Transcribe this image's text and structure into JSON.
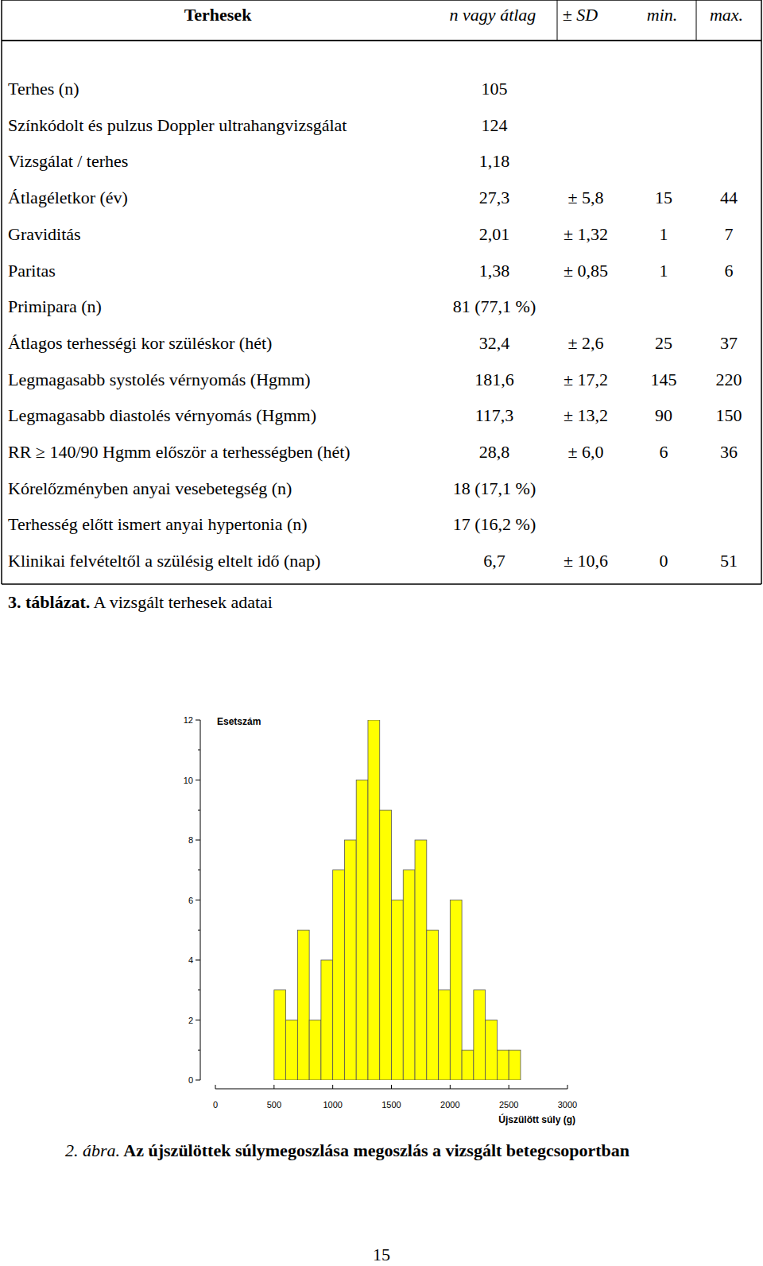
{
  "table": {
    "header": [
      "Terhesek",
      "n vagy átlag",
      "± SD",
      "min.",
      "max."
    ],
    "rows": [
      [
        "Terhes (n)",
        "105",
        null,
        null,
        null
      ],
      [
        "Színkódolt és pulzus Doppler ultrahangvizsgálat",
        "124",
        null,
        null,
        null
      ],
      [
        "Vizsgálat / terhes",
        "1,18",
        null,
        null,
        null
      ],
      [
        "Átlagéletkor (év)",
        "27,3",
        "± 5,8",
        "15",
        "44"
      ],
      [
        "Graviditás",
        "2,01",
        "± 1,32",
        "1",
        "7"
      ],
      [
        "Paritas",
        "1,38",
        "± 0,85",
        "1",
        "6"
      ],
      [
        "Primipara (n)",
        "81 (77,1 %)",
        null,
        null,
        null
      ],
      [
        "Átlagos terhességi kor szüléskor (hét)",
        "32,4",
        "± 2,6",
        "25",
        "37"
      ],
      [
        "Legmagasabb systolés vérnyomás (Hgmm)",
        "181,6",
        "± 17,2",
        "145",
        "220"
      ],
      [
        "Legmagasabb diastolés vérnyomás (Hgmm)",
        "117,3",
        "± 13,2",
        "90",
        "150"
      ],
      [
        "RR ≥ 140/90 Hgmm először a terhességben (hét)",
        "28,8",
        "± 6,0",
        "6",
        "36"
      ],
      [
        "Kórelőzményben anyai vesebetegség (n)",
        "18 (17,1 %)",
        null,
        null,
        null
      ],
      [
        "Terhesség előtt ismert anyai hypertonia (n)",
        "17 (16,2 %)",
        null,
        null,
        null
      ],
      [
        "Klinikai felvételtől a szülésig eltelt idő (nap)",
        "6,7",
        "± 10,6",
        "0",
        "51"
      ]
    ]
  },
  "table_caption": {
    "number": "3. táblázat.",
    "text": "A vizsgált terhesek adatai"
  },
  "chart_data": {
    "type": "histogram",
    "y_label": "Esetszám",
    "x_label": "Újszülött súly (g)",
    "bins": [
      500,
      600,
      700,
      800,
      900,
      1000,
      1100,
      1200,
      1300,
      1400,
      1500,
      1600,
      1700,
      1800,
      1900,
      2000,
      2100,
      2200,
      2300,
      2400,
      2500,
      2600
    ],
    "counts": [
      3,
      2,
      5,
      2,
      4,
      7,
      8,
      10,
      12,
      9,
      6,
      7,
      8,
      5,
      3,
      6,
      1,
      3,
      2,
      1,
      1
    ],
    "color": "#ffff00",
    "xlim": [
      0,
      3000
    ],
    "xticks": [
      0,
      500,
      1000,
      1500,
      2000,
      2500,
      3000
    ],
    "ylim": [
      0,
      12
    ],
    "yticks": [
      0,
      2,
      4,
      6,
      8,
      10,
      12
    ]
  },
  "figure_caption": {
    "number": "2. ábra.",
    "text": "Az újszülöttek súlymegoszlása megoszlás a vizsgált betegcsoportban"
  },
  "page_number": "15"
}
